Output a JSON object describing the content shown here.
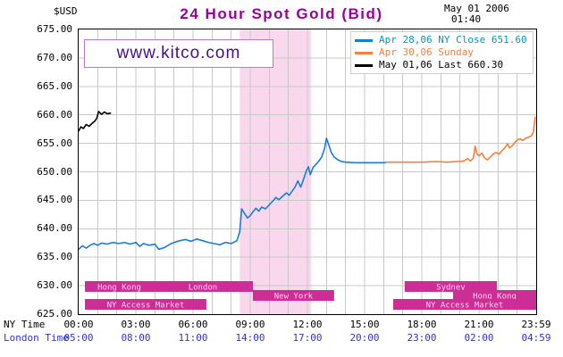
{
  "header": {
    "currency": "$USD",
    "title": "24 Hour Spot Gold (Bid)",
    "date": "May 01 2006",
    "time": "01:40"
  },
  "watermark": "www.kitco.com",
  "legend": {
    "items": [
      {
        "label": "Apr 28,06  NY Close 651.60",
        "marker_color": "#1b7cd6",
        "text_color": "#0099bb"
      },
      {
        "label": "Apr 30,06  Sunday",
        "marker_color": "#f4803c",
        "text_color": "#f4803c"
      },
      {
        "label": "May 01,06  Last 660.30",
        "marker_color": "#000000",
        "text_color": "#000000"
      }
    ]
  },
  "axes": {
    "y_ticks": [
      "675.00",
      "670.00",
      "665.00",
      "660.00",
      "655.00",
      "650.00",
      "645.00",
      "640.00",
      "635.00",
      "630.00",
      "625.00"
    ],
    "tick_hours": [
      0,
      3,
      6,
      9,
      12,
      15,
      18,
      21,
      24
    ],
    "x_rows": [
      {
        "label": "NY Time",
        "color": "#000000",
        "times": [
          "00:00",
          "03:00",
          "06:00",
          "09:00",
          "12:00",
          "15:00",
          "18:00",
          "21:00",
          "23:59"
        ]
      },
      {
        "label": "London Time",
        "color": "#3333cc",
        "times": [
          "05:00",
          "08:00",
          "11:00",
          "14:00",
          "17:00",
          "20:00",
          "23:00",
          "02:00",
          "04:59"
        ]
      }
    ]
  },
  "sessions": [
    {
      "label": "Hong Kong",
      "start_h": 0.33,
      "end_h": 3.94,
      "row": 0
    },
    {
      "label": "London",
      "start_h": 3.89,
      "end_h": 9.14,
      "row": 0
    },
    {
      "label": "New York",
      "start_h": 9.14,
      "end_h": 13.4,
      "row": 1
    },
    {
      "label": "Sydney",
      "start_h": 17.1,
      "end_h": 21.94,
      "row": 0
    },
    {
      "label": "Hong Kong",
      "start_h": 19.64,
      "end_h": 24,
      "row": 1
    },
    {
      "label": "NY Access Market",
      "start_h": 0.33,
      "end_h": 6.7,
      "row": 2
    },
    {
      "label": "NY Access Market",
      "start_h": 16.5,
      "end_h": 24,
      "row": 2
    }
  ],
  "highlight_band": {
    "start_h": 8.45,
    "end_h": 12.2,
    "color": "#f9d8ee"
  },
  "colors": {
    "title": "#990099",
    "watermark": "#441188",
    "grid": "#c8c8c8",
    "plot_border": "#000000",
    "session_bar": "#cc2e96",
    "session_text": "#ffd0ee"
  },
  "chart_data": {
    "type": "line",
    "title": "24 Hour Spot Gold (Bid)",
    "ylabel": "$USD",
    "x_unit": "hours (NY Time)",
    "xlim": [
      0,
      24
    ],
    "ylim": [
      625,
      675
    ],
    "grid": true,
    "legend_position": "top-right",
    "series": [
      {
        "name": "Apr 28,06 NY Close 651.60",
        "color": "#1b7cd6",
        "points": [
          [
            0,
            636.4
          ],
          [
            0.2,
            637.0
          ],
          [
            0.4,
            636.6
          ],
          [
            0.6,
            637.1
          ],
          [
            0.8,
            637.4
          ],
          [
            1.0,
            637.1
          ],
          [
            1.2,
            637.5
          ],
          [
            1.5,
            637.3
          ],
          [
            1.8,
            637.6
          ],
          [
            2.1,
            637.4
          ],
          [
            2.4,
            637.6
          ],
          [
            2.7,
            637.3
          ],
          [
            3.0,
            637.6
          ],
          [
            3.2,
            636.9
          ],
          [
            3.4,
            637.4
          ],
          [
            3.7,
            637.1
          ],
          [
            4.0,
            637.3
          ],
          [
            4.2,
            636.4
          ],
          [
            4.5,
            636.7
          ],
          [
            4.8,
            637.3
          ],
          [
            5.0,
            637.6
          ],
          [
            5.3,
            637.9
          ],
          [
            5.6,
            638.1
          ],
          [
            5.9,
            637.8
          ],
          [
            6.2,
            638.2
          ],
          [
            6.5,
            637.9
          ],
          [
            6.8,
            637.6
          ],
          [
            7.1,
            637.4
          ],
          [
            7.4,
            637.2
          ],
          [
            7.7,
            637.6
          ],
          [
            8.0,
            637.4
          ],
          [
            8.3,
            637.9
          ],
          [
            8.45,
            639.5
          ],
          [
            8.55,
            643.5
          ],
          [
            8.7,
            642.7
          ],
          [
            8.85,
            641.9
          ],
          [
            9.0,
            642.3
          ],
          [
            9.15,
            643.0
          ],
          [
            9.3,
            643.6
          ],
          [
            9.45,
            643.1
          ],
          [
            9.6,
            643.8
          ],
          [
            9.8,
            643.5
          ],
          [
            10.0,
            644.2
          ],
          [
            10.2,
            644.9
          ],
          [
            10.35,
            645.5
          ],
          [
            10.5,
            645.1
          ],
          [
            10.7,
            645.7
          ],
          [
            10.9,
            646.3
          ],
          [
            11.05,
            645.9
          ],
          [
            11.2,
            646.6
          ],
          [
            11.35,
            647.3
          ],
          [
            11.5,
            648.4
          ],
          [
            11.65,
            647.3
          ],
          [
            11.8,
            648.7
          ],
          [
            11.95,
            650.2
          ],
          [
            12.05,
            650.9
          ],
          [
            12.15,
            649.5
          ],
          [
            12.3,
            650.8
          ],
          [
            12.45,
            651.3
          ],
          [
            12.6,
            651.9
          ],
          [
            12.75,
            652.6
          ],
          [
            12.9,
            654.1
          ],
          [
            13.0,
            655.9
          ],
          [
            13.1,
            654.9
          ],
          [
            13.25,
            653.4
          ],
          [
            13.4,
            652.6
          ],
          [
            13.6,
            652.1
          ],
          [
            13.8,
            651.8
          ],
          [
            14.0,
            651.7
          ],
          [
            14.5,
            651.6
          ],
          [
            15.0,
            651.6
          ],
          [
            15.5,
            651.6
          ],
          [
            16.1,
            651.6
          ]
        ]
      },
      {
        "name": "Apr 30,06 Sunday",
        "color": "#f4803c",
        "points": [
          [
            16.1,
            651.7
          ],
          [
            17.0,
            651.7
          ],
          [
            18.0,
            651.7
          ],
          [
            18.8,
            651.8
          ],
          [
            19.3,
            651.7
          ],
          [
            19.8,
            651.8
          ],
          [
            20.2,
            651.9
          ],
          [
            20.4,
            652.3
          ],
          [
            20.55,
            651.9
          ],
          [
            20.7,
            652.4
          ],
          [
            20.8,
            654.5
          ],
          [
            20.9,
            653.1
          ],
          [
            21.0,
            652.8
          ],
          [
            21.15,
            653.3
          ],
          [
            21.3,
            652.4
          ],
          [
            21.45,
            652.1
          ],
          [
            21.6,
            652.6
          ],
          [
            21.75,
            653.1
          ],
          [
            21.9,
            653.4
          ],
          [
            22.05,
            653.1
          ],
          [
            22.2,
            653.7
          ],
          [
            22.35,
            654.2
          ],
          [
            22.5,
            654.9
          ],
          [
            22.6,
            654.2
          ],
          [
            22.75,
            654.6
          ],
          [
            22.9,
            655.2
          ],
          [
            23.0,
            655.6
          ],
          [
            23.15,
            655.8
          ],
          [
            23.3,
            655.5
          ],
          [
            23.45,
            655.9
          ],
          [
            23.6,
            656.1
          ],
          [
            23.75,
            656.3
          ],
          [
            23.85,
            657.0
          ],
          [
            23.95,
            659.6
          ]
        ]
      },
      {
        "name": "May 01,06 Last 660.30",
        "color": "#000000",
        "points": [
          [
            0,
            657.2
          ],
          [
            0.12,
            657.9
          ],
          [
            0.25,
            657.6
          ],
          [
            0.4,
            658.3
          ],
          [
            0.55,
            658.0
          ],
          [
            0.7,
            658.5
          ],
          [
            0.85,
            658.9
          ],
          [
            0.95,
            659.4
          ],
          [
            1.05,
            660.6
          ],
          [
            1.2,
            660.1
          ],
          [
            1.35,
            660.5
          ],
          [
            1.5,
            660.2
          ],
          [
            1.67,
            660.3
          ]
        ]
      }
    ]
  }
}
